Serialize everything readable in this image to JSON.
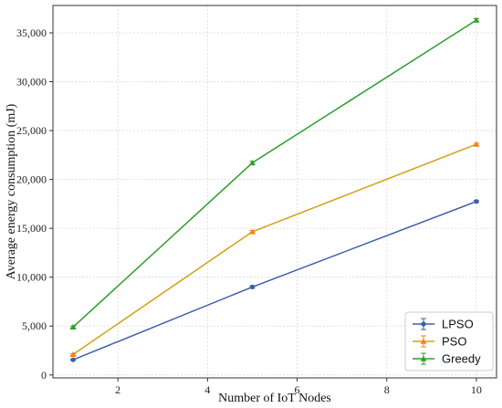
{
  "chart_data": {
    "type": "line",
    "xlabel": "Number of IoT Nodes",
    "ylabel": "Average energy consumption (mJ)",
    "x": [
      1,
      5,
      10
    ],
    "xlim": [
      0.55,
      10.45
    ],
    "ylim": [
      -300,
      37800
    ],
    "xticks": [
      2,
      4,
      6,
      8,
      10
    ],
    "xtick_labels": [
      "2",
      "4",
      "6",
      "8",
      "10"
    ],
    "yticks": [
      0,
      5000,
      10000,
      15000,
      20000,
      25000,
      30000,
      35000
    ],
    "ytick_labels": [
      "0",
      "5,000",
      "10,000",
      "15,000",
      "20,000",
      "25,000",
      "30,000",
      "35,000"
    ],
    "grid": true,
    "legend_position": "bottom-right",
    "series": [
      {
        "name": "LPSO",
        "values": [
          1550,
          9000,
          17750
        ],
        "errors": [
          60,
          120,
          100
        ],
        "color": "#3b5fa8",
        "marker": "circle"
      },
      {
        "name": "PSO",
        "values": [
          2100,
          14650,
          23600
        ],
        "errors": [
          80,
          120,
          120
        ],
        "color": "#ff7f0e",
        "marker": "triangle",
        "line_color": "#d4a017"
      },
      {
        "name": "Greedy",
        "values": [
          4900,
          21700,
          36300
        ],
        "errors": [
          100,
          150,
          150
        ],
        "color": "#2ca02c",
        "marker": "triangle"
      }
    ]
  }
}
